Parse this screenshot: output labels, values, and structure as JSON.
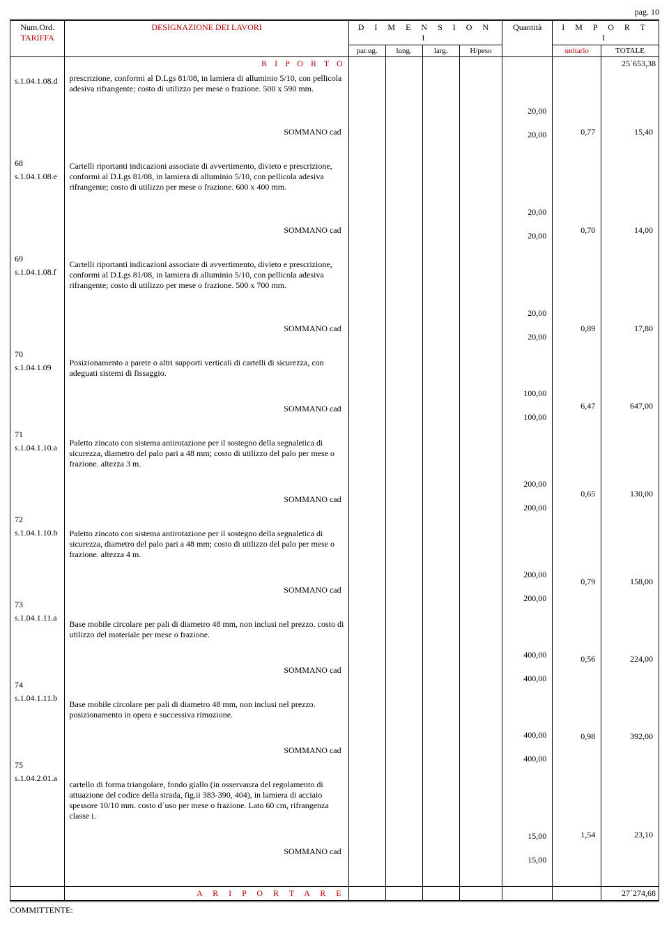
{
  "page_label": "pag. 10",
  "header": {
    "num_ord": "Num.Ord.",
    "tariffa": "TARIFFA",
    "designazione": "DESIGNAZIONE DEI LAVORI",
    "dimensioni": "D I M E N S I O N I",
    "importi": "I M P O R T I",
    "quantita": "Quantità",
    "par_ug": "par.ug.",
    "lung": "lung.",
    "larg": "larg.",
    "hpeso": "H/peso",
    "unitario": "unitario",
    "totale": "TOTALE"
  },
  "riporto": {
    "label": "R I P O R T O",
    "totale": "25´653,38"
  },
  "items": [
    {
      "num": "",
      "tariffa": "s.1.04.1.08.d",
      "desc": "prescrizione, conformi al D.Lgs 81/08, in lamiera di alluminio 5/10, con pellicola adesiva rifrangente; costo di utilizzo per mese o frazione. 500 x 590 mm.",
      "qty_line": "20,00",
      "sommano": "SOMMANO cad",
      "s_qty": "20,00",
      "s_unit": "0,77",
      "s_tot": "15,40"
    },
    {
      "num": "68",
      "tariffa": "s.1.04.1.08.e",
      "desc": "Cartelli riportanti indicazioni associate di avvertimento, divieto e prescrizione, conformi al D.Lgs 81/08, in lamiera di alluminio 5/10, con pellicola adesiva rifrangente; costo di utilizzo per mese o frazione. 600 x 400 mm.",
      "qty_line": "20,00",
      "sommano": "SOMMANO cad",
      "s_qty": "20,00",
      "s_unit": "0,70",
      "s_tot": "14,00"
    },
    {
      "num": "69",
      "tariffa": "s.1.04.1.08.f",
      "desc": "Cartelli riportanti indicazioni associate di avvertimento, divieto e prescrizione, conformi al D.Lgs 81/08, in lamiera di alluminio 5/10, con pellicola adesiva rifrangente; costo di utilizzo per mese o frazione. 500 x 700 mm.",
      "qty_line": "20,00",
      "sommano": "SOMMANO cad",
      "s_qty": "20,00",
      "s_unit": "0,89",
      "s_tot": "17,80"
    },
    {
      "num": "70",
      "tariffa": "s.1.04.1.09",
      "desc": "Posizionamento a parete o altri supporti verticali  di cartelli di sicurezza, con adeguati sistemi di fissaggio.",
      "qty_line": "100,00",
      "sommano": "SOMMANO cad",
      "s_qty": "100,00",
      "s_unit": "6,47",
      "s_tot": "647,00"
    },
    {
      "num": "71",
      "tariffa": "s.1.04.1.10.a",
      "desc": "Paletto zincato con sistema antirotazione per il sostegno della segnaletica di sicurezza, diametro del palo pari a 48 mm; costo di utilizzo del palo per mese o frazione. altezza 3 m.",
      "qty_line": "200,00",
      "sommano": "SOMMANO cad",
      "s_qty": "200,00",
      "s_unit": "0,65",
      "s_tot": "130,00"
    },
    {
      "num": "72",
      "tariffa": "s.1.04.1.10.b",
      "desc": "Paletto zincato con sistema antirotazione per il sostegno della segnaletica di sicurezza, diametro del palo pari a 48 mm; costo di utilizzo del palo per mese o frazione. altezza 4 m.",
      "qty_line": "200,00",
      "sommano": "SOMMANO cad",
      "s_qty": "200,00",
      "s_unit": "0,79",
      "s_tot": "158,00"
    },
    {
      "num": "73",
      "tariffa": "s.1.04.1.11.a",
      "desc": "Base mobile circolare per pali di diametro 48 mm, non inclusi nel prezzo. costo di utilizzo del materiale per mese o frazione.",
      "qty_line": "400,00",
      "sommano": "SOMMANO cad",
      "s_qty": "400,00",
      "s_unit": "0,56",
      "s_tot": "224,00"
    },
    {
      "num": "74",
      "tariffa": "s.1.04.1.11.b",
      "desc": "Base mobile circolare per pali di diametro 48 mm, non inclusi nel prezzo. posizionamento in opera e successiva rimozione.",
      "qty_line": "400,00",
      "sommano": "SOMMANO cad",
      "s_qty": "400,00",
      "s_unit": "0,98",
      "s_tot": "392,00"
    },
    {
      "num": "75",
      "tariffa": "s.1.04.2.01.a",
      "desc": "cartello di forma triangolare, fondo giallo (in osservanza del regolamento di attuazione del codice della strada, fig.ii 383-390, 404), in lamiera di acciaio spessore 10/10 mm. costo d´uso per mese o frazione. Lato 60 cm, rifrangenza  classe i.",
      "qty_line": "15,00",
      "sommano": "SOMMANO cad",
      "s_qty": "15,00",
      "s_unit": "1,54",
      "s_tot": "23,10"
    }
  ],
  "riportare": {
    "label": "A  R I P O R T A R E",
    "totale": "27´274,68"
  },
  "committente": "COMMITTENTE:",
  "colors": {
    "accent": "#b00000",
    "text": "#000000",
    "background": "#ffffff"
  },
  "typography": {
    "family": "Times New Roman",
    "body_size_pt": 9,
    "header_size_pt": 9
  }
}
